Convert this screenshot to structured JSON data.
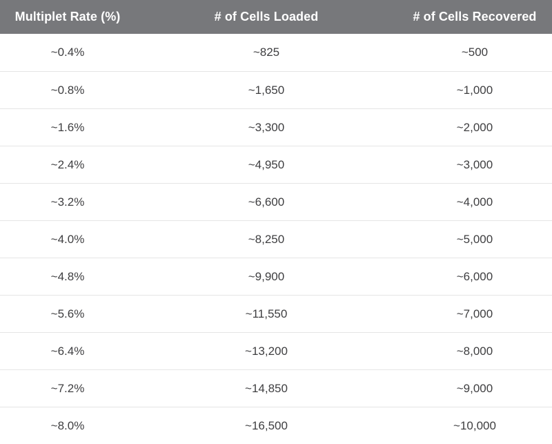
{
  "chart_data": {
    "type": "table",
    "columns": [
      "Multiplet Rate (%)",
      "# of Cells Loaded",
      "# of Cells Recovered"
    ],
    "rows": [
      [
        "~0.4%",
        "~825",
        "~500"
      ],
      [
        "~0.8%",
        "~1,650",
        "~1,000"
      ],
      [
        "~1.6%",
        "~3,300",
        "~2,000"
      ],
      [
        "~2.4%",
        "~4,950",
        "~3,000"
      ],
      [
        "~3.2%",
        "~6,600",
        "~4,000"
      ],
      [
        "~4.0%",
        "~8,250",
        "~5,000"
      ],
      [
        "~4.8%",
        "~9,900",
        "~6,000"
      ],
      [
        "~5.6%",
        "~11,550",
        "~7,000"
      ],
      [
        "~6.4%",
        "~13,200",
        "~8,000"
      ],
      [
        "~7.2%",
        "~14,850",
        "~9,000"
      ],
      [
        "~8.0%",
        "~16,500",
        "~10,000"
      ]
    ],
    "layout": {
      "grid": "horizontal-row-dividers-only",
      "cell_alignment": "center"
    }
  },
  "colors": {
    "header_bg": "#77787b",
    "header_text": "#ffffff",
    "body_bg": "#ffffff",
    "row_text": "#3e3e40",
    "divider": "#e5e5e5"
  }
}
